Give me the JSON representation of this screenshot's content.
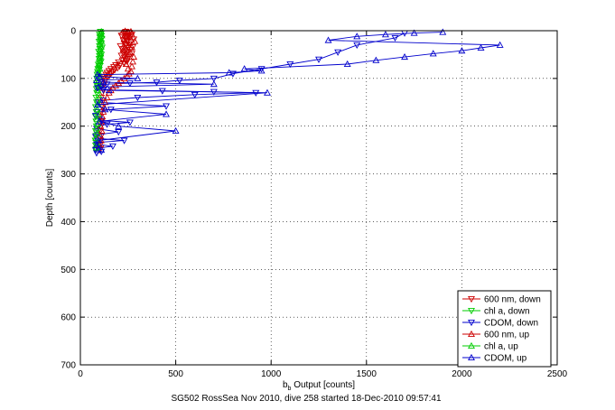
{
  "chart_data": {
    "type": "scatter",
    "title": "",
    "xlabel_main": "b",
    "xlabel_sub": "b",
    "xlabel_rest": " Output [counts]",
    "ylabel": "Depth [counts]",
    "caption": "SG502 RossSea Nov 2010, dive 258 started 18-Dec-2010 09:57:41",
    "xlim": [
      0,
      2500
    ],
    "ylim": [
      0,
      700
    ],
    "y_reversed": true,
    "grid": true,
    "xticks": [
      0,
      500,
      1000,
      1500,
      2000,
      2500
    ],
    "yticks": [
      0,
      100,
      200,
      300,
      400,
      500,
      600,
      700
    ],
    "legend_position": "bottom-right",
    "series": [
      {
        "name": "600 nm, down",
        "color": "#cc0000",
        "marker": "triangle-down",
        "line": false,
        "x": [
          240,
          255,
          230,
          270,
          215,
          250,
          260,
          235,
          280,
          225,
          245,
          265,
          230,
          255,
          240,
          210,
          275,
          250,
          220,
          260,
          235,
          245,
          225,
          270,
          240,
          215,
          255,
          230,
          250,
          235,
          220,
          245,
          200,
          230,
          210,
          185,
          205,
          175,
          195,
          160,
          180,
          150,
          170,
          140,
          160,
          135,
          150,
          125,
          140,
          120,
          130,
          115,
          125,
          110,
          120,
          115,
          110,
          105,
          115,
          110,
          105,
          112,
          108,
          104,
          110,
          106,
          102,
          108,
          104,
          100
        ],
        "y": [
          2,
          4,
          6,
          8,
          10,
          12,
          14,
          16,
          18,
          20,
          22,
          24,
          26,
          28,
          30,
          32,
          34,
          36,
          38,
          40,
          42,
          44,
          46,
          48,
          50,
          52,
          54,
          56,
          58,
          60,
          62,
          64,
          66,
          68,
          70,
          72,
          74,
          76,
          78,
          80,
          82,
          84,
          86,
          88,
          90,
          92,
          94,
          96,
          98,
          100,
          104,
          108,
          112,
          118,
          124,
          130,
          140,
          150,
          160,
          170,
          180,
          190,
          200,
          210,
          220,
          230,
          240,
          245,
          248,
          250
        ]
      },
      {
        "name": "chl a, down",
        "color": "#00cc00",
        "marker": "triangle-down",
        "line": false,
        "x": [
          105,
          110,
          100,
          108,
          102,
          112,
          104,
          98,
          110,
          106,
          100,
          114,
          102,
          108,
          96,
          104,
          110,
          100,
          106,
          98,
          104,
          108,
          100,
          94,
          102,
          98,
          92,
          96,
          90,
          94,
          88,
          92,
          86,
          90,
          85,
          88,
          84,
          86,
          82,
          85,
          80,
          83,
          80,
          82,
          84,
          80,
          82,
          78,
          80,
          82
        ],
        "y": [
          2,
          5,
          8,
          11,
          14,
          17,
          20,
          23,
          26,
          29,
          32,
          35,
          38,
          41,
          44,
          47,
          50,
          53,
          56,
          59,
          62,
          65,
          68,
          71,
          74,
          77,
          80,
          83,
          86,
          89,
          92,
          96,
          100,
          105,
          110,
          116,
          122,
          130,
          140,
          150,
          160,
          170,
          180,
          190,
          200,
          210,
          220,
          230,
          240,
          248
        ]
      },
      {
        "name": "CDOM, down",
        "color": "#0000cc",
        "marker": "triangle-down",
        "line": true,
        "x": [
          1700,
          1650,
          1450,
          1350,
          1250,
          1100,
          950,
          800,
          700,
          520,
          400,
          260,
          140,
          110,
          90,
          120,
          430,
          700,
          920,
          600,
          300,
          120,
          95,
          450,
          160,
          90,
          80,
          100,
          110,
          260,
          140,
          95,
          85,
          200,
          90,
          80,
          100,
          230,
          90,
          85,
          170,
          90,
          80,
          110,
          85
        ],
        "y": [
          5,
          15,
          30,
          45,
          60,
          70,
          80,
          90,
          100,
          104,
          108,
          110,
          112,
          116,
          120,
          124,
          126,
          128,
          130,
          134,
          140,
          146,
          150,
          158,
          165,
          170,
          178,
          184,
          188,
          192,
          196,
          200,
          205,
          212,
          218,
          222,
          226,
          230,
          234,
          238,
          242,
          246,
          250,
          253,
          256
        ]
      },
      {
        "name": "600 nm, up",
        "color": "#cc0000",
        "marker": "triangle-up",
        "line": false,
        "x": [
          100,
          108,
          104,
          112,
          106,
          110,
          115,
          120,
          125,
          130,
          140,
          150,
          160,
          170,
          185,
          200,
          215,
          230,
          245,
          255,
          265,
          250,
          270,
          240,
          275,
          235,
          280,
          245,
          260,
          225,
          270,
          250,
          240,
          285,
          230,
          260,
          245,
          255,
          270,
          240,
          220,
          250,
          265,
          235
        ],
        "y": [
          240,
          230,
          220,
          210,
          200,
          190,
          180,
          170,
          160,
          150,
          140,
          130,
          125,
          120,
          115,
          110,
          105,
          100,
          95,
          90,
          85,
          80,
          75,
          70,
          65,
          60,
          55,
          50,
          45,
          40,
          35,
          30,
          26,
          22,
          18,
          14,
          12,
          10,
          8,
          6,
          4,
          3,
          2,
          1
        ]
      },
      {
        "name": "chl a, up",
        "color": "#00cc00",
        "marker": "triangle-up",
        "line": false,
        "x": [
          84,
          86,
          82,
          88,
          85,
          90,
          87,
          92,
          88,
          94,
          90,
          96,
          92,
          98,
          95,
          100,
          97,
          102,
          99,
          104,
          100,
          106,
          103,
          108,
          104,
          110,
          106,
          112,
          108,
          110
        ],
        "y": [
          245,
          235,
          225,
          215,
          205,
          195,
          185,
          175,
          165,
          155,
          145,
          135,
          125,
          115,
          105,
          95,
          88,
          80,
          72,
          64,
          56,
          48,
          40,
          34,
          28,
          22,
          16,
          10,
          6,
          2
        ]
      },
      {
        "name": "CDOM, up",
        "color": "#0000cc",
        "marker": "triangle-up",
        "line": true,
        "x": [
          110,
          85,
          95,
          500,
          200,
          100,
          450,
          130,
          90,
          980,
          150,
          95,
          700,
          120,
          85,
          300,
          100,
          90,
          780,
          950,
          860,
          1400,
          1550,
          1700,
          1850,
          2000,
          2100,
          2200,
          1300,
          1450,
          1600,
          1750,
          1900
        ],
        "y": [
          250,
          240,
          230,
          210,
          200,
          190,
          175,
          165,
          155,
          130,
          125,
          118,
          112,
          108,
          104,
          100,
          96,
          92,
          88,
          84,
          80,
          70,
          62,
          55,
          48,
          42,
          36,
          30,
          20,
          12,
          8,
          5,
          3
        ]
      }
    ]
  }
}
